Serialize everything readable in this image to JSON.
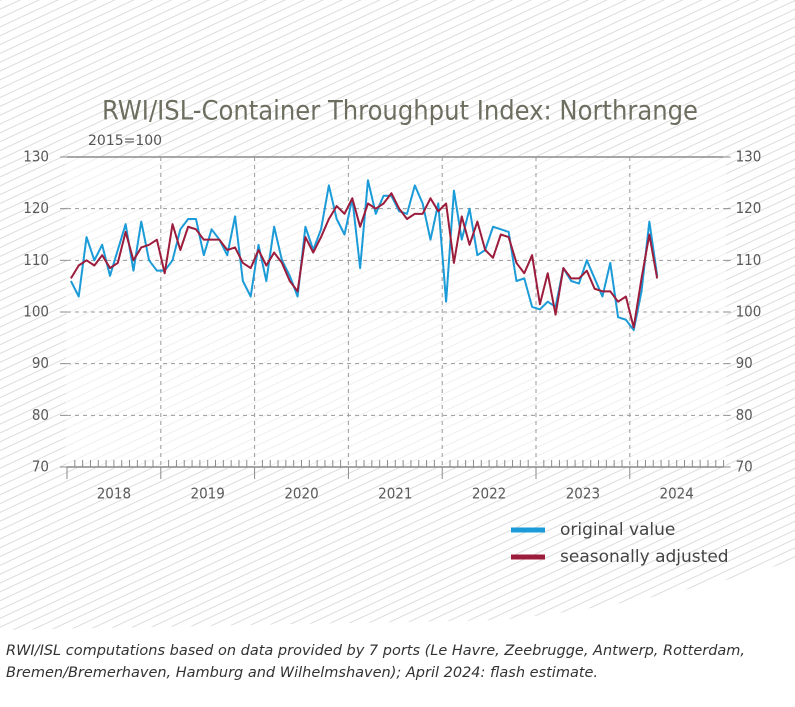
{
  "chart_data": {
    "type": "line",
    "title": "RWI/ISL-Container Throughput Index: Northrange",
    "subtitle": "2015=100",
    "source": "RWI/ISL computations based on data provided by 7 ports (Le Havre, Zeebrugge, Antwerp, Rotterdam,\nBremen/Bremerhaven, Hamburg and Wilhelmshaven); April 2024: flash estimate.",
    "categories": [
      "2018",
      null,
      null,
      null,
      null,
      null,
      null,
      null,
      null,
      null,
      null,
      null,
      "2019",
      null,
      null,
      null,
      null,
      null,
      null,
      null,
      null,
      null,
      null,
      null,
      "2020",
      null,
      null,
      null,
      null,
      null,
      null,
      null,
      null,
      null,
      null,
      null,
      "2021",
      null,
      null,
      null,
      null,
      null,
      null,
      null,
      null,
      null,
      null,
      null,
      "2022",
      null,
      null,
      null,
      null,
      null,
      null,
      null,
      null,
      null,
      null,
      null,
      "2023",
      null,
      null,
      null,
      null,
      null,
      null,
      null,
      null,
      null,
      null,
      null,
      "2024",
      null,
      null,
      null
    ],
    "series": [
      {
        "name": "original value",
        "color": "#1b9bd7",
        "values": [
          106,
          103,
          114.5,
          110,
          113,
          107,
          112,
          117,
          108,
          117.5,
          110,
          108,
          108,
          110,
          116,
          118,
          118,
          111,
          116,
          114,
          111,
          118.5,
          106,
          103,
          113,
          106,
          116.5,
          110,
          107,
          103,
          116.5,
          112,
          116,
          124.5,
          118,
          115,
          122,
          108.5,
          125.5,
          119,
          122.5,
          122.5,
          119.5,
          119,
          124.5,
          121,
          114,
          121,
          102,
          123.5,
          114,
          120,
          111,
          112,
          116.5,
          116,
          115.5,
          106,
          106.5,
          101,
          100.5,
          102,
          101,
          108.5,
          106,
          105.5,
          110,
          106.5,
          103,
          109.5,
          99,
          98.5,
          96.5,
          104,
          117.5,
          107
        ]
      },
      {
        "name": "seasonally adjusted",
        "color": "#9c1c3c",
        "values": [
          106.5,
          109,
          110,
          109,
          111,
          108.5,
          109.5,
          115.5,
          110,
          112.5,
          113,
          114,
          107.5,
          117,
          112,
          116.5,
          116,
          114,
          114,
          114,
          112,
          112.5,
          109.5,
          108.5,
          112,
          109,
          111.5,
          109.5,
          106,
          104,
          114.5,
          111.5,
          114.5,
          118,
          120.5,
          119,
          122,
          116.5,
          121,
          120,
          121,
          123,
          120,
          118,
          119,
          119,
          122,
          119.5,
          121,
          109.5,
          118.5,
          113,
          117.5,
          112,
          110.5,
          115,
          114.5,
          109.5,
          107.5,
          111,
          101.5,
          107.5,
          99.5,
          108.5,
          106.5,
          106.5,
          108,
          104.5,
          104,
          104,
          102,
          103,
          97,
          106.5,
          115,
          106.5
        ]
      }
    ],
    "ylim": [
      70,
      130
    ],
    "yticks": [
      70,
      80,
      90,
      100,
      110,
      120,
      130
    ],
    "grid": true,
    "legend": "bottom-right"
  }
}
